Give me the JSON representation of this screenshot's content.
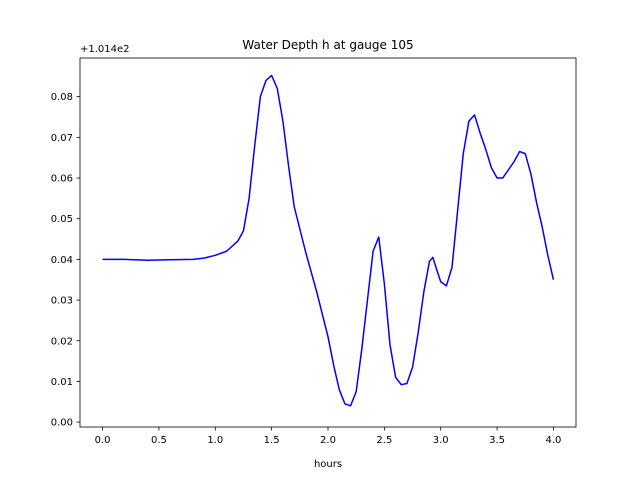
{
  "chart_data": {
    "type": "line",
    "title": "Water Depth h at gauge 105",
    "xlabel": "hours",
    "ylabel": "",
    "y_offset_label": "+1.014e2",
    "xlim": [
      -0.2,
      4.2
    ],
    "ylim": [
      -0.0012,
      0.0895
    ],
    "grid": false,
    "x_ticks": [
      0.0,
      0.5,
      1.0,
      1.5,
      2.0,
      2.5,
      3.0,
      3.5,
      4.0
    ],
    "x_tick_labels": [
      "0.0",
      "0.5",
      "1.0",
      "1.5",
      "2.0",
      "2.5",
      "3.0",
      "3.5",
      "4.0"
    ],
    "y_ticks": [
      0.0,
      0.01,
      0.02,
      0.03,
      0.04,
      0.05,
      0.06,
      0.07,
      0.08
    ],
    "y_tick_labels": [
      "0.00",
      "0.01",
      "0.02",
      "0.03",
      "0.04",
      "0.05",
      "0.06",
      "0.07",
      "0.08"
    ],
    "series": [
      {
        "color": "#0000ff",
        "x": [
          0.0,
          0.2,
          0.4,
          0.6,
          0.8,
          0.9,
          1.0,
          1.1,
          1.2,
          1.25,
          1.3,
          1.35,
          1.4,
          1.45,
          1.5,
          1.55,
          1.6,
          1.65,
          1.7,
          1.8,
          1.9,
          2.0,
          2.05,
          2.1,
          2.15,
          2.2,
          2.25,
          2.3,
          2.35,
          2.4,
          2.45,
          2.5,
          2.55,
          2.6,
          2.65,
          2.7,
          2.75,
          2.8,
          2.85,
          2.9,
          2.93,
          2.97,
          3.0,
          3.05,
          3.1,
          3.15,
          3.2,
          3.25,
          3.3,
          3.35,
          3.4,
          3.45,
          3.5,
          3.55,
          3.6,
          3.65,
          3.7,
          3.75,
          3.8,
          3.85,
          3.9,
          3.95,
          4.0
        ],
        "y": [
          0.04,
          0.04,
          0.0398,
          0.0399,
          0.04,
          0.0403,
          0.041,
          0.042,
          0.0445,
          0.047,
          0.055,
          0.068,
          0.08,
          0.084,
          0.0852,
          0.082,
          0.074,
          0.063,
          0.053,
          0.042,
          0.032,
          0.021,
          0.014,
          0.008,
          0.0045,
          0.004,
          0.0075,
          0.018,
          0.03,
          0.042,
          0.0455,
          0.034,
          0.019,
          0.011,
          0.0092,
          0.0095,
          0.0135,
          0.022,
          0.032,
          0.0395,
          0.0405,
          0.037,
          0.0345,
          0.0335,
          0.038,
          0.052,
          0.066,
          0.074,
          0.0755,
          0.071,
          0.067,
          0.0625,
          0.06,
          0.06,
          0.062,
          0.064,
          0.0665,
          0.066,
          0.061,
          0.054,
          0.048,
          0.041,
          0.035
        ]
      }
    ]
  }
}
